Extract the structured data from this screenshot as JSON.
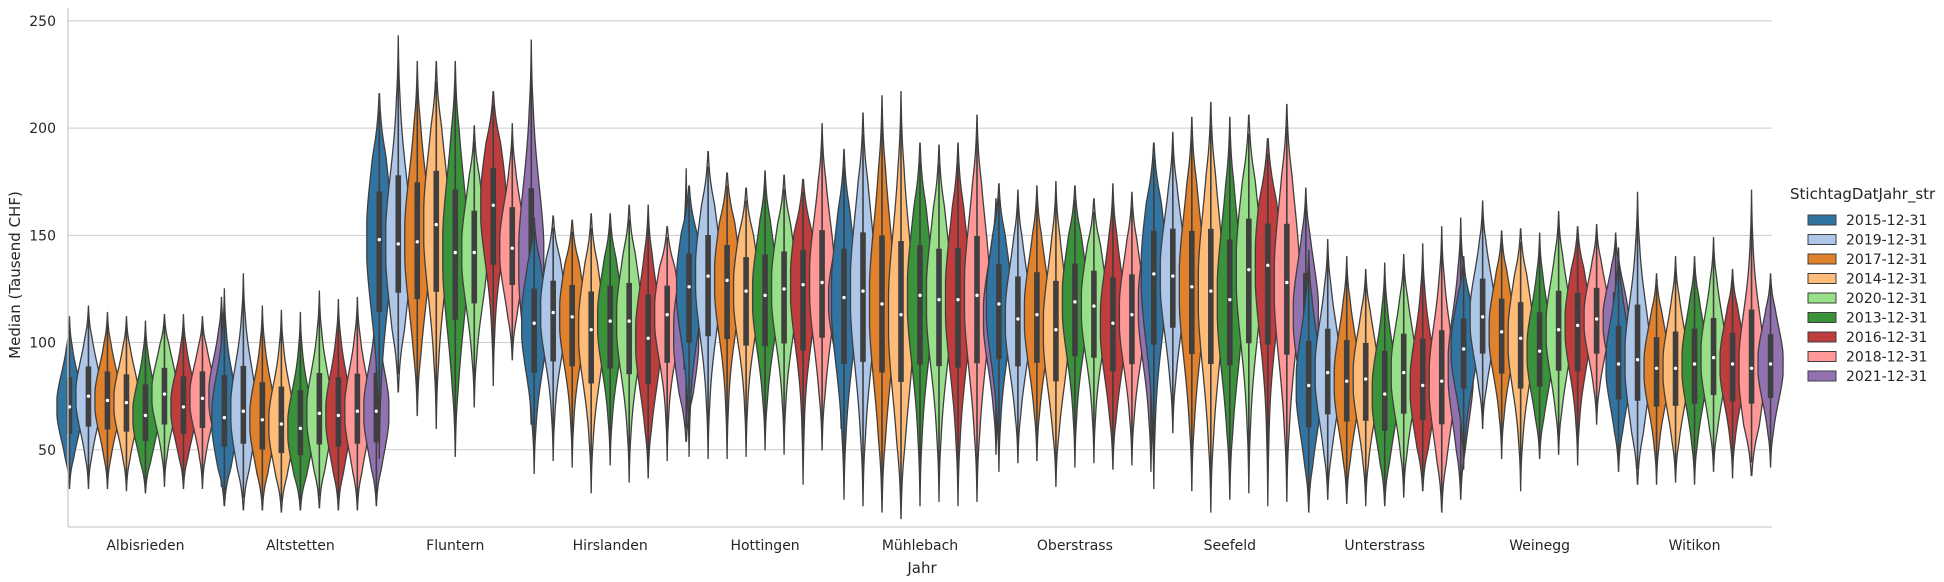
{
  "chart_data": {
    "type": "violin",
    "xlabel": "Jahr",
    "ylabel": "Median (Tausend CHF)",
    "ylim": [
      14,
      256
    ],
    "yticks": [
      50,
      100,
      150,
      200,
      250
    ],
    "grid": "horizontal",
    "legend": {
      "title": "StichtagDatJahr_str",
      "placement": "right",
      "entries": [
        "2015-12-31",
        "2019-12-31",
        "2017-12-31",
        "2014-12-31",
        "2020-12-31",
        "2013-12-31",
        "2016-12-31",
        "2018-12-31",
        "2021-12-31"
      ]
    },
    "hue_order": [
      "2015-12-31",
      "2019-12-31",
      "2017-12-31",
      "2014-12-31",
      "2013-12-31",
      "2020-12-31",
      "2016-12-31",
      "2018-12-31",
      "2021-12-31"
    ],
    "colors": {
      "2015-12-31": "#3274a1",
      "2019-12-31": "#aec7e8",
      "2017-12-31": "#e1812c",
      "2014-12-31": "#ffbb78",
      "2013-12-31": "#3a923a",
      "2020-12-31": "#98df8a",
      "2016-12-31": "#c03d3e",
      "2018-12-31": "#ff9896",
      "2021-12-31": "#9372b2"
    },
    "categories": [
      "Albisrieden",
      "Altstetten",
      "Fluntern",
      "Hirslanden",
      "Hottingen",
      "Mühlebach",
      "Oberstrass",
      "Seefeld",
      "Unterstrass",
      "Weinegg",
      "Witikon"
    ],
    "medians": {
      "Albisrieden": [
        70,
        75,
        73,
        72,
        66,
        76,
        70,
        74,
        75
      ],
      "Altstetten": [
        65,
        68,
        64,
        62,
        60,
        67,
        66,
        68,
        68
      ],
      "Fluntern": [
        148,
        146,
        147,
        155,
        142,
        142,
        164,
        144,
        138
      ],
      "Hirslanden": [
        109,
        114,
        112,
        106,
        110,
        110,
        102,
        113,
        104
      ],
      "Hottingen": [
        126,
        131,
        129,
        124,
        122,
        125,
        127,
        128,
        120
      ],
      "Mühlebach": [
        121,
        124,
        118,
        113,
        122,
        120,
        120,
        122,
        112
      ],
      "Oberstrass": [
        118,
        111,
        113,
        106,
        119,
        117,
        109,
        113,
        117
      ],
      "Seefeld": [
        132,
        131,
        126,
        124,
        120,
        134,
        136,
        128,
        113
      ],
      "Unterstrass": [
        80,
        86,
        82,
        83,
        76,
        86,
        80,
        82,
        88
      ],
      "Weinegg": [
        97,
        112,
        105,
        102,
        96,
        106,
        108,
        111,
        110
      ],
      "Witikon": [
        90,
        92,
        88,
        88,
        90,
        93,
        90,
        88,
        90
      ]
    },
    "ranges": {
      "Albisrieden": [
        [
          32,
          112
        ],
        [
          32,
          117
        ],
        [
          32,
          114
        ],
        [
          31,
          112
        ],
        [
          30,
          110
        ],
        [
          33,
          113
        ],
        [
          32,
          113
        ],
        [
          32,
          112
        ],
        [
          33,
          121
        ]
      ],
      "Altstetten": [
        [
          24,
          125
        ],
        [
          22,
          132
        ],
        [
          22,
          117
        ],
        [
          21,
          115
        ],
        [
          22,
          114
        ],
        [
          23,
          124
        ],
        [
          22,
          120
        ],
        [
          22,
          121
        ],
        [
          24,
          122
        ]
      ],
      "Fluntern": [
        [
          46,
          216
        ],
        [
          77,
          243
        ],
        [
          66,
          231
        ],
        [
          60,
          231
        ],
        [
          47,
          231
        ],
        [
          70,
          201
        ],
        [
          80,
          217
        ],
        [
          92,
          202
        ],
        [
          62,
          241
        ]
      ],
      "Hirslanden": [
        [
          39,
          158
        ],
        [
          45,
          159
        ],
        [
          42,
          157
        ],
        [
          30,
          160
        ],
        [
          43,
          160
        ],
        [
          35,
          164
        ],
        [
          37,
          164
        ],
        [
          45,
          154
        ],
        [
          54,
          181
        ]
      ],
      "Hottingen": [
        [
          47,
          173
        ],
        [
          46,
          189
        ],
        [
          46,
          179
        ],
        [
          47,
          172
        ],
        [
          50,
          180
        ],
        [
          48,
          178
        ],
        [
          34,
          176
        ],
        [
          50,
          202
        ],
        [
          60,
          162
        ]
      ],
      "Mühlebach": [
        [
          27,
          190
        ],
        [
          24,
          207
        ],
        [
          21,
          215
        ],
        [
          18,
          217
        ],
        [
          24,
          193
        ],
        [
          26,
          192
        ],
        [
          24,
          193
        ],
        [
          26,
          206
        ],
        [
          48,
          167
        ]
      ],
      "Oberstrass": [
        [
          40,
          174
        ],
        [
          44,
          171
        ],
        [
          45,
          173
        ],
        [
          33,
          175
        ],
        [
          42,
          173
        ],
        [
          44,
          167
        ],
        [
          41,
          174
        ],
        [
          43,
          170
        ],
        [
          40,
          174
        ]
      ],
      "Seefeld": [
        [
          32,
          193
        ],
        [
          58,
          198
        ],
        [
          31,
          205
        ],
        [
          21,
          212
        ],
        [
          27,
          205
        ],
        [
          30,
          206
        ],
        [
          24,
          195
        ],
        [
          26,
          211
        ],
        [
          48,
          172
        ]
      ],
      "Unterstrass": [
        [
          21,
          143
        ],
        [
          27,
          148
        ],
        [
          25,
          140
        ],
        [
          24,
          134
        ],
        [
          24,
          137
        ],
        [
          28,
          141
        ],
        [
          31,
          146
        ],
        [
          21,
          154
        ],
        [
          27,
          158
        ]
      ],
      "Weinegg": [
        [
          41,
          140
        ],
        [
          60,
          166
        ],
        [
          46,
          152
        ],
        [
          31,
          153
        ],
        [
          46,
          151
        ],
        [
          48,
          161
        ],
        [
          43,
          154
        ],
        [
          62,
          155
        ],
        [
          66,
          151
        ]
      ],
      "Witikon": [
        [
          40,
          144
        ],
        [
          34,
          170
        ],
        [
          34,
          132
        ],
        [
          35,
          140
        ],
        [
          34,
          140
        ],
        [
          40,
          149
        ],
        [
          37,
          134
        ],
        [
          38,
          171
        ],
        [
          42,
          132
        ]
      ]
    }
  }
}
